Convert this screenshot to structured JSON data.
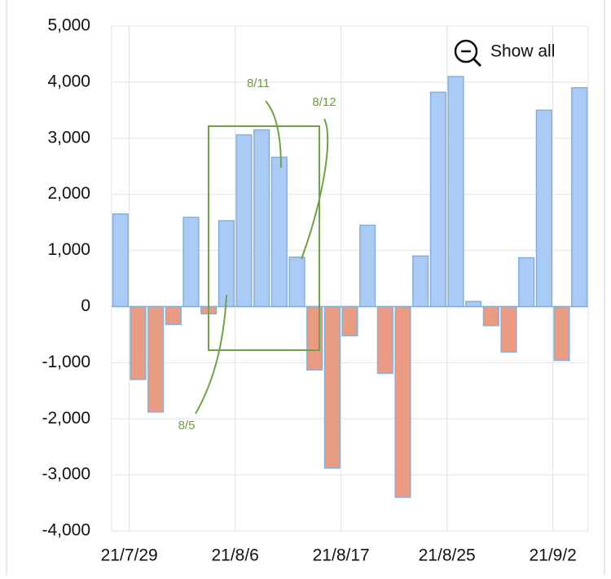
{
  "chart_data": {
    "type": "bar",
    "categories": [
      null,
      "21/7/29",
      null,
      null,
      null,
      null,
      null,
      "21/8/6",
      null,
      null,
      null,
      null,
      null,
      "21/8/17",
      null,
      null,
      null,
      null,
      null,
      "21/8/25",
      null,
      null,
      null,
      null,
      null,
      "21/9/2",
      null
    ],
    "values": [
      1650,
      -1300,
      -1880,
      -320,
      1590,
      -130,
      1530,
      3060,
      3150,
      2660,
      880,
      -1130,
      -2880,
      -520,
      1450,
      -1190,
      -3400,
      900,
      3820,
      4100,
      90,
      -340,
      -810,
      870,
      3500,
      -960,
      3900
    ],
    "positive_color": "#a9cbf6",
    "negative_color": "#e99c83",
    "ylim": [
      -4000,
      5000
    ],
    "yticks": [
      {
        "value": -4000,
        "label": "-4,000"
      },
      {
        "value": -3000,
        "label": "-3,000"
      },
      {
        "value": -2000,
        "label": "-2,000"
      },
      {
        "value": -1000,
        "label": "-1,000"
      },
      0,
      {
        "value": 1000,
        "label": "1,000"
      },
      {
        "value": 2000,
        "label": "2,000"
      },
      {
        "value": 3000,
        "label": "3,000"
      },
      {
        "value": 4000,
        "label": "4,000"
      },
      {
        "value": 5000,
        "label": "5,000"
      }
    ],
    "grid": true,
    "annotations": [
      "8/5",
      "8/11",
      "8/12"
    ],
    "reset_button": "Show all"
  }
}
